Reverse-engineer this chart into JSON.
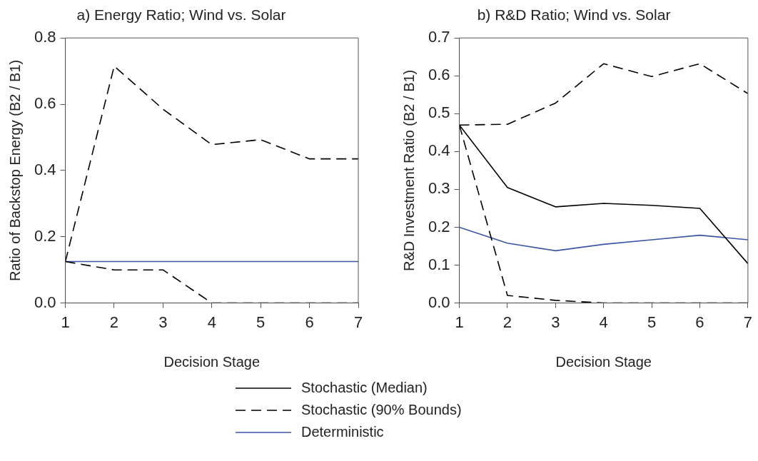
{
  "chart_data": [
    {
      "type": "line",
      "title": "a) Energy Ratio; Wind vs. Solar",
      "xlabel": "Decision Stage",
      "ylabel": "Ratio of Backstop Energy (B2 / B1)",
      "x": [
        1,
        2,
        3,
        4,
        5,
        6,
        7
      ],
      "xlim": [
        1,
        7
      ],
      "xticks": [
        1,
        2,
        3,
        4,
        5,
        6,
        7
      ],
      "ylim": [
        0,
        0.8
      ],
      "yticks": [
        {
          "value": 0,
          "label": "0.0"
        },
        {
          "value": 0.2,
          "label": "0.2"
        },
        {
          "value": 0.4,
          "label": "0.4"
        },
        {
          "value": 0.6,
          "label": "0.6"
        },
        {
          "value": 0.8,
          "label": "0.8"
        }
      ],
      "grid": false,
      "legend": false,
      "marker": "none",
      "series": [
        {
          "color": "#000000",
          "line_style": "dashed",
          "values": [
            0.125,
            0.715,
            0.585,
            0.478,
            0.493,
            0.435,
            0.435
          ]
        },
        {
          "color": "#000000",
          "line_style": "dashed",
          "values": [
            0.125,
            0.1,
            0.1,
            0,
            0,
            0,
            0
          ]
        },
        {
          "color": "#3a55a4",
          "line_style": "solid",
          "values": [
            0.125,
            0.125,
            0.125,
            0.125,
            0.125,
            0.125,
            0.125
          ]
        }
      ]
    },
    {
      "type": "line",
      "title": "b) R&D Ratio; Wind vs. Solar",
      "xlabel": "Decision Stage",
      "ylabel": "R&D Investment Ratio (B2 / B1)",
      "x": [
        1,
        2,
        3,
        4,
        5,
        6,
        7
      ],
      "xlim": [
        1,
        7
      ],
      "xticks": [
        1,
        2,
        3,
        4,
        5,
        6,
        7
      ],
      "ylim": [
        0,
        0.7
      ],
      "yticks": [
        {
          "value": 0,
          "label": "0.0"
        },
        0.1,
        0.2,
        0.3,
        0.4,
        0.5,
        0.6,
        0.7
      ],
      "grid": false,
      "legend": "bottom",
      "marker": "none",
      "series": [
        {
          "name": "Stochastic (Median)",
          "color": "#000000",
          "line_style": "solid",
          "values": [
            0.47,
            0.305,
            0.254,
            0.263,
            0.258,
            0.25,
            0.104
          ]
        },
        {
          "name": "Stochastic (90% Bounds)",
          "color": "#000000",
          "line_style": "dashed",
          "values": [
            0.47,
            0.472,
            0.528,
            0.632,
            0.598,
            0.632,
            0.553
          ]
        },
        {
          "color": "#000000",
          "line_style": "dashed",
          "values": [
            0.47,
            0.02,
            0.007,
            0,
            0,
            0,
            0
          ]
        },
        {
          "name": "Deterministic",
          "color": "#3a55a4",
          "line_style": "solid",
          "values": [
            0.2,
            0.158,
            0.138,
            0.155,
            0.167,
            0.179,
            0.167
          ]
        }
      ]
    }
  ]
}
